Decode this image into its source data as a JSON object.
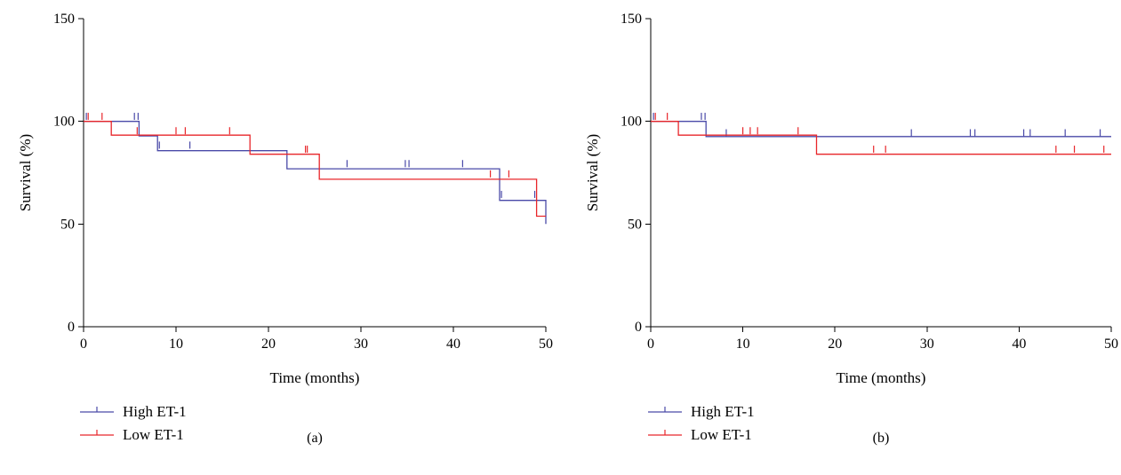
{
  "colors": {
    "high": "#4a4aa8",
    "low": "#e8262a"
  },
  "chart_data": [
    {
      "type": "line",
      "panel_label": "(a)",
      "xlabel": "Time (months)",
      "ylabel": "Survival (%)",
      "xlim": [
        0,
        50
      ],
      "ylim": [
        0,
        150
      ],
      "xticks": [
        0,
        10,
        20,
        30,
        40,
        50
      ],
      "yticks": [
        0,
        50,
        100,
        150
      ],
      "legend_position": "bottom-left",
      "series": [
        {
          "name": "High ET-1",
          "color_key": "high",
          "steps": [
            [
              0,
              100
            ],
            [
              6,
              100
            ],
            [
              6,
              92.9
            ],
            [
              8,
              92.9
            ],
            [
              8,
              85.7
            ],
            [
              22,
              85.7
            ],
            [
              22,
              76.9
            ],
            [
              45,
              76.9
            ],
            [
              45,
              61.5
            ],
            [
              50,
              61.5
            ],
            [
              50,
              50
            ]
          ],
          "censored": [
            [
              0.3,
              102
            ],
            [
              5.5,
              102
            ],
            [
              5.9,
              102
            ],
            [
              8.2,
              88
            ],
            [
              11.5,
              88
            ],
            [
              28.5,
              79
            ],
            [
              34.8,
              79
            ],
            [
              35.2,
              79
            ],
            [
              41,
              79
            ],
            [
              45.2,
              64
            ],
            [
              48.8,
              64
            ]
          ]
        },
        {
          "name": "Low ET-1",
          "color_key": "low",
          "steps": [
            [
              0,
              100
            ],
            [
              3,
              100
            ],
            [
              3,
              93.3
            ],
            [
              18,
              93.3
            ],
            [
              18,
              84
            ],
            [
              25.5,
              84
            ],
            [
              25.5,
              71.8
            ],
            [
              49,
              71.8
            ],
            [
              49,
              53.8
            ],
            [
              50,
              53.8
            ]
          ],
          "censored": [
            [
              0.5,
              102
            ],
            [
              2,
              102
            ],
            [
              5.8,
              95
            ],
            [
              10,
              95
            ],
            [
              11,
              95
            ],
            [
              15.8,
              95
            ],
            [
              24,
              86
            ],
            [
              24.2,
              86
            ],
            [
              44,
              74
            ],
            [
              46,
              74
            ]
          ]
        }
      ]
    },
    {
      "type": "line",
      "panel_label": "(b)",
      "xlabel": "Time (months)",
      "ylabel": "Survival (%)",
      "xlim": [
        0,
        50
      ],
      "ylim": [
        0,
        150
      ],
      "xticks": [
        0,
        10,
        20,
        30,
        40,
        50
      ],
      "yticks": [
        0,
        50,
        100,
        150
      ],
      "legend_position": "bottom-left",
      "series": [
        {
          "name": "High ET-1",
          "color_key": "high",
          "steps": [
            [
              0,
              100
            ],
            [
              6,
              100
            ],
            [
              6,
              92.6
            ],
            [
              50,
              92.6
            ]
          ],
          "censored": [
            [
              0.3,
              102
            ],
            [
              5.5,
              102
            ],
            [
              5.9,
              102
            ],
            [
              8.2,
              94
            ],
            [
              28.3,
              94
            ],
            [
              34.7,
              94
            ],
            [
              35.2,
              94
            ],
            [
              40.5,
              94
            ],
            [
              41.2,
              94
            ],
            [
              45,
              94
            ],
            [
              48.8,
              94
            ]
          ]
        },
        {
          "name": "Low ET-1",
          "color_key": "low",
          "steps": [
            [
              0,
              100
            ],
            [
              3,
              100
            ],
            [
              3,
              93.3
            ],
            [
              18,
              93.3
            ],
            [
              18,
              84
            ],
            [
              50,
              84
            ]
          ],
          "censored": [
            [
              0.5,
              102
            ],
            [
              1.8,
              102
            ],
            [
              10,
              95
            ],
            [
              10.8,
              95
            ],
            [
              11.6,
              95
            ],
            [
              16,
              95
            ],
            [
              24.2,
              86
            ],
            [
              25.5,
              86
            ],
            [
              44,
              86
            ],
            [
              46,
              86
            ],
            [
              49.2,
              86
            ]
          ]
        }
      ]
    }
  ]
}
